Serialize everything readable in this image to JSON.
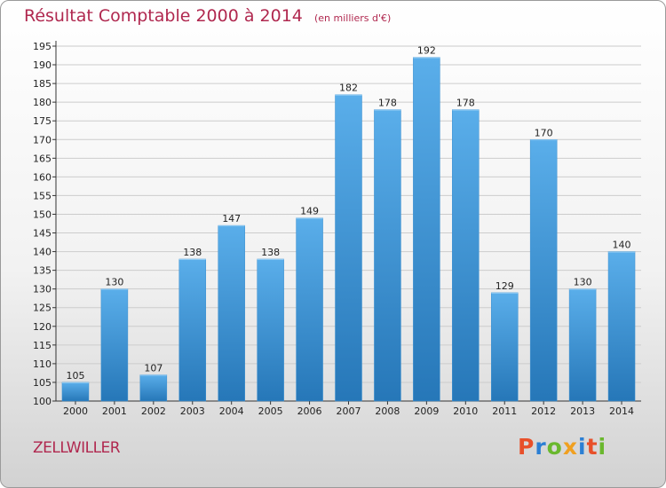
{
  "header": {
    "title": "Résultat Comptable 2000 à 2014",
    "subtitle": "(en milliers d'€)"
  },
  "footer": {
    "commune": "ZELLWILLER",
    "logo_text": "Proxiti"
  },
  "colors": {
    "title": "#b0284f",
    "bar_top": "#5aaeea",
    "bar_bottom": "#2677b8",
    "grid": "#cccccc",
    "logo": [
      "#e8502a",
      "#2b7fd4",
      "#6ab82e",
      "#f0a020",
      "#2b7fd4",
      "#e8502a",
      "#6ab82e"
    ]
  },
  "chart_data": {
    "type": "bar",
    "title": "Résultat Comptable 2000 à 2014",
    "subtitle": "(en milliers d'€)",
    "xlabel": "",
    "ylabel": "",
    "ylim": [
      100,
      195
    ],
    "ytick_step": 5,
    "grid": true,
    "categories": [
      "2000",
      "2001",
      "2002",
      "2003",
      "2004",
      "2005",
      "2006",
      "2007",
      "2008",
      "2009",
      "2010",
      "2011",
      "2012",
      "2013",
      "2014"
    ],
    "values": [
      105,
      130,
      107,
      138,
      147,
      138,
      149,
      182,
      178,
      192,
      178,
      129,
      170,
      130,
      140
    ],
    "yticks": [
      "100",
      "105",
      "110",
      "115",
      "120",
      "125",
      "130",
      "135",
      "140",
      "145",
      "150",
      "155",
      "160",
      "165",
      "170",
      "175",
      "180",
      "185",
      "190",
      "195"
    ]
  }
}
